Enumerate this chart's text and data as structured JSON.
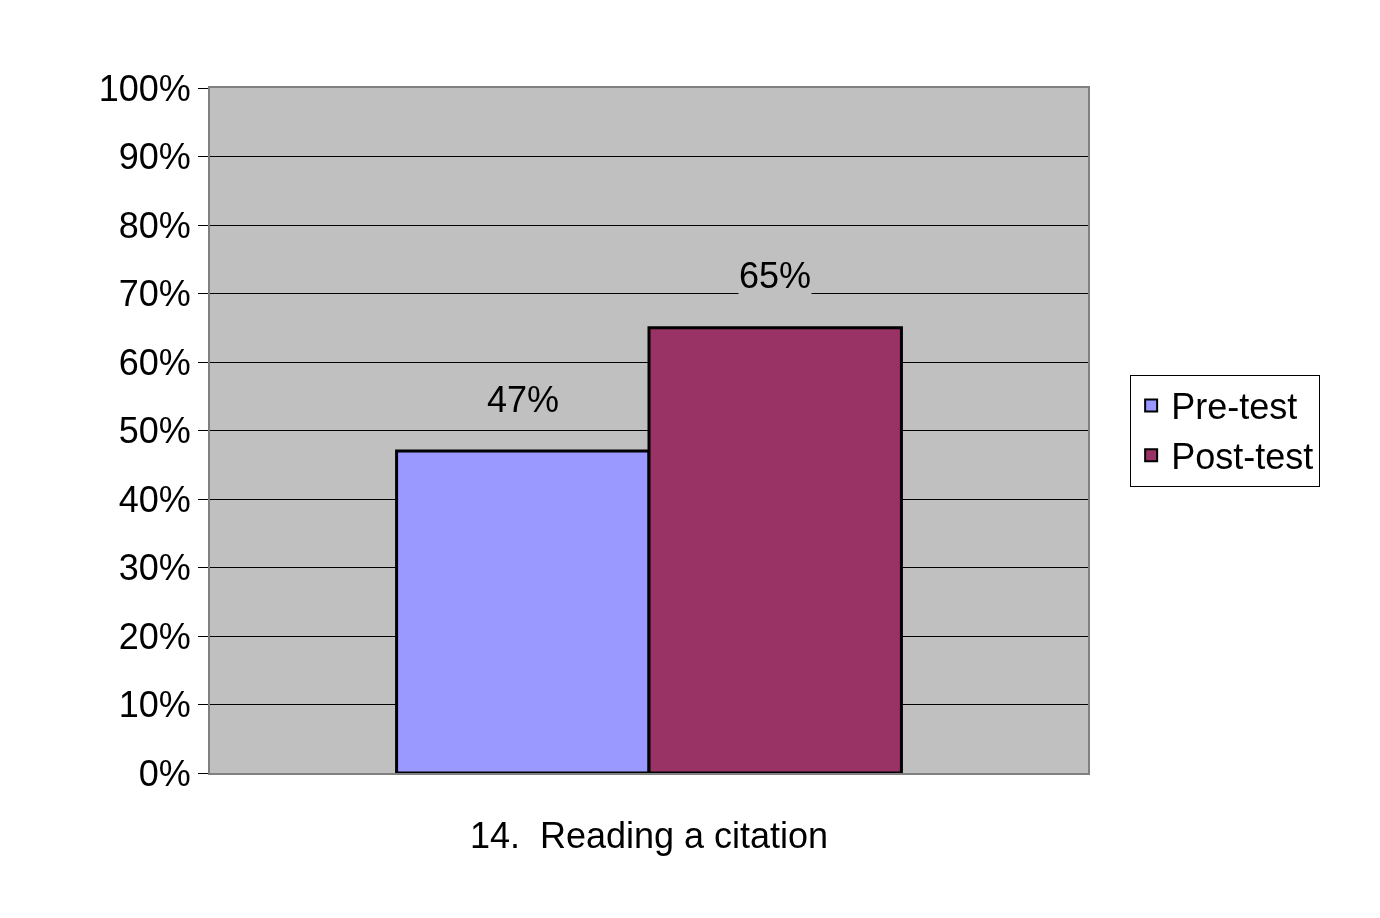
{
  "chart_data": {
    "type": "bar",
    "categories": [
      "14.  Reading a citation"
    ],
    "series": [
      {
        "name": "Pre-test",
        "color": "#9999ff",
        "values": [
          47
        ],
        "value_labels": [
          "47%"
        ]
      },
      {
        "name": "Post-test",
        "color": "#993366",
        "values": [
          65
        ],
        "value_labels": [
          "65%"
        ]
      }
    ],
    "ylim": [
      0,
      100
    ],
    "yticks": [
      {
        "value": 0,
        "label": "0%"
      },
      {
        "value": 10,
        "label": "10%"
      },
      {
        "value": 20,
        "label": "20%"
      },
      {
        "value": 30,
        "label": "30%"
      },
      {
        "value": 40,
        "label": "40%"
      },
      {
        "value": 50,
        "label": "50%"
      },
      {
        "value": 60,
        "label": "60%"
      },
      {
        "value": 70,
        "label": "70%"
      },
      {
        "value": 80,
        "label": "80%"
      },
      {
        "value": 90,
        "label": "90%"
      },
      {
        "value": 100,
        "label": "100%"
      }
    ],
    "grid": "y",
    "legend": "right"
  }
}
